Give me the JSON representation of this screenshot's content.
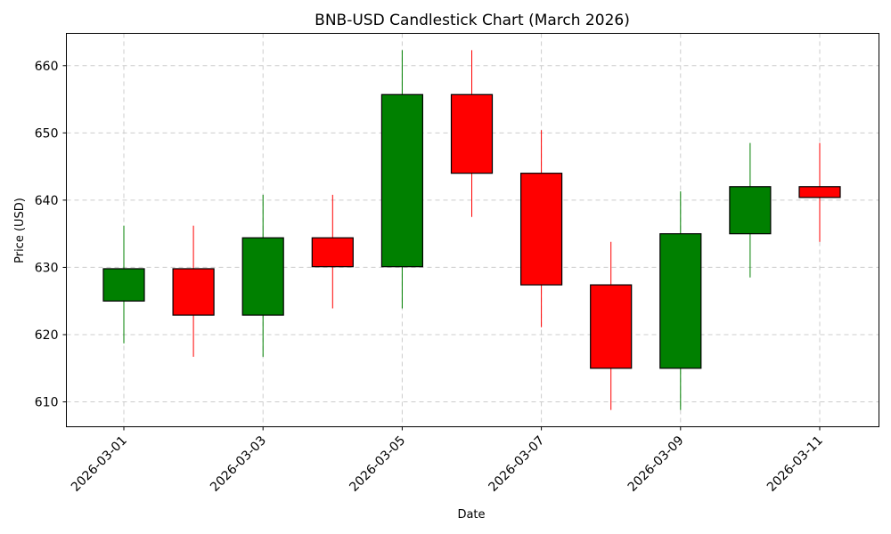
{
  "chart_data": {
    "type": "candlestick",
    "title": "BNB-USD Candlestick Chart (March 2026)",
    "xlabel": "Date",
    "ylabel": "Price (USD)",
    "ylim": [
      606.3,
      664.8
    ],
    "yticks": [
      610,
      620,
      630,
      640,
      650,
      660
    ],
    "xticks": [
      "2026-03-01",
      "2026-03-03",
      "2026-03-05",
      "2026-03-07",
      "2026-03-09",
      "2026-03-11"
    ],
    "grid": true,
    "colors": {
      "up": "#008000",
      "down": "#ff0000",
      "body_edge": "#000000"
    },
    "candles": [
      {
        "date": "2026-03-01",
        "open": 625.0,
        "high": 636.2,
        "low": 618.7,
        "close": 629.8
      },
      {
        "date": "2026-03-02",
        "open": 629.8,
        "high": 636.2,
        "low": 616.7,
        "close": 622.9
      },
      {
        "date": "2026-03-03",
        "open": 622.9,
        "high": 640.8,
        "low": 616.7,
        "close": 634.4
      },
      {
        "date": "2026-03-04",
        "open": 634.4,
        "high": 640.8,
        "low": 623.9,
        "close": 630.1
      },
      {
        "date": "2026-03-05",
        "open": 630.1,
        "high": 662.3,
        "low": 623.9,
        "close": 655.7
      },
      {
        "date": "2026-03-06",
        "open": 655.7,
        "high": 662.3,
        "low": 637.5,
        "close": 644.0
      },
      {
        "date": "2026-03-07",
        "open": 644.0,
        "high": 650.4,
        "low": 621.1,
        "close": 627.4
      },
      {
        "date": "2026-03-08",
        "open": 627.4,
        "high": 633.8,
        "low": 608.8,
        "close": 615.0
      },
      {
        "date": "2026-03-09",
        "open": 615.0,
        "high": 641.3,
        "low": 608.8,
        "close": 635.0
      },
      {
        "date": "2026-03-10",
        "open": 635.0,
        "high": 648.5,
        "low": 628.5,
        "close": 642.0
      },
      {
        "date": "2026-03-11",
        "open": 642.0,
        "high": 648.5,
        "low": 633.8,
        "close": 640.4
      }
    ]
  }
}
